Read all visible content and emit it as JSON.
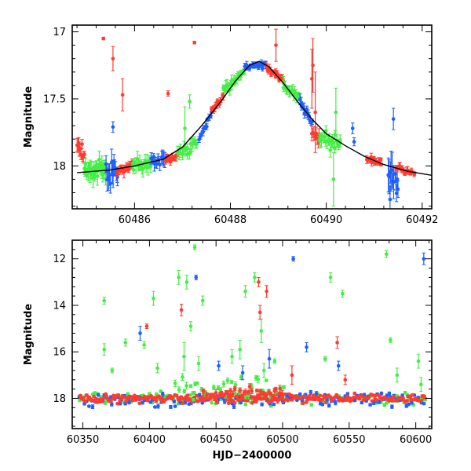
{
  "chart_data": [
    {
      "type": "scatter",
      "title": "",
      "xlabel": "",
      "ylabel": "Magnitude",
      "xlim": [
        60484.7,
        60492.2
      ],
      "ylim": [
        18.32,
        16.95
      ],
      "y_inverted": true,
      "x_ticks": [
        60486,
        60488,
        60490,
        60492
      ],
      "y_ticks": [
        17,
        17.5,
        18
      ],
      "y_tick_labels": [
        "17",
        "17.5",
        "18"
      ],
      "colors": {
        "red": "#ff3b30",
        "green": "#44ee44",
        "blue": "#1f5fff",
        "model": "#000000"
      },
      "model_curve": [
        [
          60484.8,
          18.05
        ],
        [
          60485.5,
          18.03
        ],
        [
          60486.0,
          18.0
        ],
        [
          60486.6,
          17.95
        ],
        [
          60487.0,
          17.86
        ],
        [
          60487.4,
          17.7
        ],
        [
          60487.8,
          17.52
        ],
        [
          60488.1,
          17.37
        ],
        [
          60488.4,
          17.25
        ],
        [
          60488.6,
          17.22
        ],
        [
          60488.8,
          17.26
        ],
        [
          60489.1,
          17.38
        ],
        [
          60489.4,
          17.52
        ],
        [
          60489.7,
          17.65
        ],
        [
          60490.0,
          17.76
        ],
        [
          60490.4,
          17.85
        ],
        [
          60490.8,
          17.93
        ],
        [
          60491.2,
          17.99
        ],
        [
          60491.7,
          18.04
        ],
        [
          60492.2,
          18.07
        ]
      ],
      "segments": [
        {
          "color": "red",
          "x0": 60484.8,
          "x1": 60484.95,
          "y0": 17.82,
          "y1": 17.92,
          "n": 10,
          "scatter": 0.05,
          "err": 0.04
        },
        {
          "color": "green",
          "x0": 60484.95,
          "x1": 60485.4,
          "y0": 18.03,
          "y1": 18.03,
          "n": 32,
          "scatter": 0.06,
          "err": 0.05
        },
        {
          "color": "blue",
          "x0": 60485.4,
          "x1": 60485.65,
          "y0": 18.05,
          "y1": 18.05,
          "n": 16,
          "scatter": 0.07,
          "err": 0.07
        },
        {
          "color": "red",
          "x0": 60485.65,
          "x1": 60485.95,
          "y0": 18.02,
          "y1": 18.01,
          "n": 16,
          "scatter": 0.03,
          "err": 0.03
        },
        {
          "color": "green",
          "x0": 60485.95,
          "x1": 60486.35,
          "y0": 18.0,
          "y1": 17.98,
          "n": 24,
          "scatter": 0.04,
          "err": 0.04
        },
        {
          "color": "blue",
          "x0": 60486.35,
          "x1": 60486.65,
          "y0": 17.97,
          "y1": 17.95,
          "n": 14,
          "scatter": 0.04,
          "err": 0.04
        },
        {
          "color": "red",
          "x0": 60486.65,
          "x1": 60486.9,
          "y0": 17.96,
          "y1": 17.92,
          "n": 16,
          "scatter": 0.02,
          "err": 0.02
        },
        {
          "color": "green",
          "x0": 60486.9,
          "x1": 60487.3,
          "y0": 17.9,
          "y1": 17.84,
          "n": 18,
          "scatter": 0.04,
          "err": 0.04
        },
        {
          "color": "blue",
          "x0": 60487.35,
          "x1": 60487.6,
          "y0": 17.8,
          "y1": 17.62,
          "n": 14,
          "scatter": 0.02,
          "err": 0.02
        },
        {
          "color": "red",
          "x0": 60487.6,
          "x1": 60487.85,
          "y0": 17.6,
          "y1": 17.48,
          "n": 14,
          "scatter": 0.02,
          "err": 0.02
        },
        {
          "color": "green",
          "x0": 60487.85,
          "x1": 60488.3,
          "y0": 17.45,
          "y1": 17.28,
          "n": 22,
          "scatter": 0.03,
          "err": 0.03
        },
        {
          "color": "blue",
          "x0": 60488.3,
          "x1": 60488.75,
          "y0": 17.26,
          "y1": 17.24,
          "n": 24,
          "scatter": 0.02,
          "err": 0.02
        },
        {
          "color": "red",
          "x0": 60488.75,
          "x1": 60489.1,
          "y0": 17.27,
          "y1": 17.36,
          "n": 18,
          "scatter": 0.02,
          "err": 0.02
        },
        {
          "color": "green",
          "x0": 60489.1,
          "x1": 60489.45,
          "y0": 17.4,
          "y1": 17.5,
          "n": 18,
          "scatter": 0.03,
          "err": 0.03
        },
        {
          "color": "blue",
          "x0": 60489.45,
          "x1": 60489.7,
          "y0": 17.52,
          "y1": 17.68,
          "n": 14,
          "scatter": 0.03,
          "err": 0.03
        },
        {
          "color": "red",
          "x0": 60489.7,
          "x1": 60489.85,
          "y0": 17.75,
          "y1": 17.8,
          "n": 8,
          "scatter": 0.04,
          "err": 0.04
        },
        {
          "color": "green",
          "x0": 60489.85,
          "x1": 60490.3,
          "y0": 17.78,
          "y1": 17.84,
          "n": 22,
          "scatter": 0.05,
          "err": 0.04
        },
        {
          "color": "red",
          "x0": 60490.85,
          "x1": 60491.15,
          "y0": 17.95,
          "y1": 17.98,
          "n": 16,
          "scatter": 0.02,
          "err": 0.02
        },
        {
          "color": "blue",
          "x0": 60491.3,
          "x1": 60491.5,
          "y0": 18.0,
          "y1": 18.15,
          "n": 12,
          "scatter": 0.08,
          "err": 0.1
        },
        {
          "color": "red",
          "x0": 60491.45,
          "x1": 60491.85,
          "y0": 18.02,
          "y1": 18.05,
          "n": 20,
          "scatter": 0.02,
          "err": 0.02
        }
      ],
      "points": [
        {
          "color": "red",
          "x": 60485.35,
          "y": 17.05,
          "err": 0.01
        },
        {
          "color": "red",
          "x": 60485.55,
          "y": 17.2,
          "err": 0.09
        },
        {
          "color": "red",
          "x": 60485.75,
          "y": 17.47,
          "err": 0.12
        },
        {
          "color": "blue",
          "x": 60485.55,
          "y": 17.71,
          "err": 0.04
        },
        {
          "color": "red",
          "x": 60486.7,
          "y": 17.46,
          "err": 0.02
        },
        {
          "color": "red",
          "x": 60487.25,
          "y": 17.08,
          "err": 0.01
        },
        {
          "color": "green",
          "x": 60487.05,
          "y": 17.72,
          "err": 0.16
        },
        {
          "color": "green",
          "x": 60487.15,
          "y": 17.52,
          "err": 0.05
        },
        {
          "color": "red",
          "x": 60488.95,
          "y": 17.1,
          "err": 0.12
        },
        {
          "color": "red",
          "x": 60489.7,
          "y": 17.35,
          "err": 0.22
        },
        {
          "color": "red",
          "x": 60489.77,
          "y": 17.6,
          "err": 0.3
        },
        {
          "color": "red",
          "x": 60489.72,
          "y": 17.25,
          "err": 0.2
        },
        {
          "color": "green",
          "x": 60490.2,
          "y": 17.6,
          "err": 0.18
        },
        {
          "color": "green",
          "x": 60490.15,
          "y": 18.1,
          "err": 0.2
        },
        {
          "color": "blue",
          "x": 60490.55,
          "y": 17.72,
          "err": 0.04
        },
        {
          "color": "blue",
          "x": 60490.58,
          "y": 17.82,
          "err": 0.03
        },
        {
          "color": "blue",
          "x": 60491.4,
          "y": 17.65,
          "err": 0.08
        },
        {
          "color": "blue",
          "x": 60491.33,
          "y": 18.25,
          "err": 0.1
        }
      ]
    },
    {
      "type": "scatter",
      "title": "",
      "xlabel": "HJD−2400000",
      "ylabel": "Magnitude",
      "xlim": [
        60342,
        60612
      ],
      "ylim": [
        19.3,
        11.2
      ],
      "y_inverted": true,
      "x_ticks": [
        60350,
        60400,
        60450,
        60500,
        60550,
        60600
      ],
      "y_ticks": [
        12,
        14,
        16,
        18
      ],
      "y_tick_labels": [
        "12",
        "14",
        "16",
        "18"
      ],
      "colors": {
        "red": "#ff3b30",
        "green": "#44ee44",
        "blue": "#1f5fff"
      },
      "baseline_segments": [
        {
          "color": "green",
          "x0": 60348,
          "x1": 60607,
          "y0": 18.0,
          "y1": 18.0,
          "n": 160,
          "scatter": 0.22,
          "err": 0.05
        },
        {
          "color": "blue",
          "x0": 60348,
          "x1": 60607,
          "y0": 18.05,
          "y1": 18.05,
          "n": 160,
          "scatter": 0.25,
          "err": 0.06
        },
        {
          "color": "red",
          "x0": 60348,
          "x1": 60607,
          "y0": 18.0,
          "y1": 18.0,
          "n": 260,
          "scatter": 0.15,
          "err": 0.04
        },
        {
          "color": "green",
          "x0": 60420,
          "x1": 60500,
          "y0": 17.6,
          "y1": 17.6,
          "n": 40,
          "scatter": 0.45,
          "err": 0.1
        },
        {
          "color": "red",
          "x0": 60440,
          "x1": 60500,
          "y0": 17.8,
          "y1": 17.8,
          "n": 40,
          "scatter": 0.3,
          "err": 0.1
        }
      ],
      "outliers": [
        {
          "color": "green",
          "x": 60366,
          "y": 13.8,
          "err": 0.15
        },
        {
          "color": "green",
          "x": 60366,
          "y": 15.9,
          "err": 0.25
        },
        {
          "color": "green",
          "x": 60372,
          "y": 16.8,
          "err": 0.1
        },
        {
          "color": "green",
          "x": 60382,
          "y": 15.6,
          "err": 0.15
        },
        {
          "color": "blue",
          "x": 60393,
          "y": 15.2,
          "err": 0.3
        },
        {
          "color": "green",
          "x": 60396,
          "y": 15.7,
          "err": 0.15
        },
        {
          "color": "red",
          "x": 60398,
          "y": 14.9,
          "err": 0.1
        },
        {
          "color": "green",
          "x": 60403,
          "y": 13.7,
          "err": 0.3
        },
        {
          "color": "green",
          "x": 60406,
          "y": 16.7,
          "err": 0.2
        },
        {
          "color": "green",
          "x": 60422,
          "y": 12.8,
          "err": 0.3
        },
        {
          "color": "red",
          "x": 60424,
          "y": 14.2,
          "err": 0.25
        },
        {
          "color": "green",
          "x": 60428,
          "y": 13.0,
          "err": 0.3
        },
        {
          "color": "green",
          "x": 60426,
          "y": 16.2,
          "err": 0.6
        },
        {
          "color": "green",
          "x": 60431,
          "y": 14.9,
          "err": 0.2
        },
        {
          "color": "green",
          "x": 60434,
          "y": 11.5,
          "err": 0.1
        },
        {
          "color": "blue",
          "x": 60435,
          "y": 12.8,
          "err": 0.1
        },
        {
          "color": "green",
          "x": 60440,
          "y": 13.8,
          "err": 0.2
        },
        {
          "color": "green",
          "x": 60437,
          "y": 16.5,
          "err": 0.3
        },
        {
          "color": "blue",
          "x": 60452,
          "y": 16.6,
          "err": 0.2
        },
        {
          "color": "green",
          "x": 60462,
          "y": 16.2,
          "err": 0.3
        },
        {
          "color": "green",
          "x": 60468,
          "y": 15.9,
          "err": 0.4
        },
        {
          "color": "green",
          "x": 60472,
          "y": 13.4,
          "err": 0.25
        },
        {
          "color": "blue",
          "x": 60470,
          "y": 16.9,
          "err": 0.3
        },
        {
          "color": "green",
          "x": 60479,
          "y": 12.8,
          "err": 0.2
        },
        {
          "color": "red",
          "x": 60482,
          "y": 13.0,
          "err": 0.2
        },
        {
          "color": "green",
          "x": 60484,
          "y": 15.1,
          "err": 0.5
        },
        {
          "color": "red",
          "x": 60483,
          "y": 14.3,
          "err": 0.3
        },
        {
          "color": "red",
          "x": 60488,
          "y": 13.4,
          "err": 0.25
        },
        {
          "color": "green",
          "x": 60486,
          "y": 16.8,
          "err": 0.3
        },
        {
          "color": "blue",
          "x": 60490,
          "y": 16.3,
          "err": 0.4
        },
        {
          "color": "green",
          "x": 60494,
          "y": 16.4,
          "err": 0.1
        },
        {
          "color": "blue",
          "x": 60508,
          "y": 12.0,
          "err": 0.1
        },
        {
          "color": "red",
          "x": 60507,
          "y": 17.0,
          "err": 0.4
        },
        {
          "color": "blue",
          "x": 60518,
          "y": 15.8,
          "err": 0.2
        },
        {
          "color": "green",
          "x": 60536,
          "y": 12.8,
          "err": 0.2
        },
        {
          "color": "green",
          "x": 60532,
          "y": 16.3,
          "err": 0.1
        },
        {
          "color": "red",
          "x": 60541,
          "y": 15.6,
          "err": 0.25
        },
        {
          "color": "blue",
          "x": 60542,
          "y": 16.6,
          "err": 0.2
        },
        {
          "color": "green",
          "x": 60545,
          "y": 13.5,
          "err": 0.15
        },
        {
          "color": "red",
          "x": 60547,
          "y": 17.2,
          "err": 0.2
        },
        {
          "color": "green",
          "x": 60578,
          "y": 11.8,
          "err": 0.15
        },
        {
          "color": "green",
          "x": 60581,
          "y": 15.5,
          "err": 0.1
        },
        {
          "color": "green",
          "x": 60586,
          "y": 17.0,
          "err": 0.3
        },
        {
          "color": "green",
          "x": 60602,
          "y": 16.4,
          "err": 0.3
        },
        {
          "color": "blue",
          "x": 60606,
          "y": 12.0,
          "err": 0.25
        },
        {
          "color": "green",
          "x": 60604,
          "y": 17.4,
          "err": 0.3
        }
      ]
    }
  ]
}
